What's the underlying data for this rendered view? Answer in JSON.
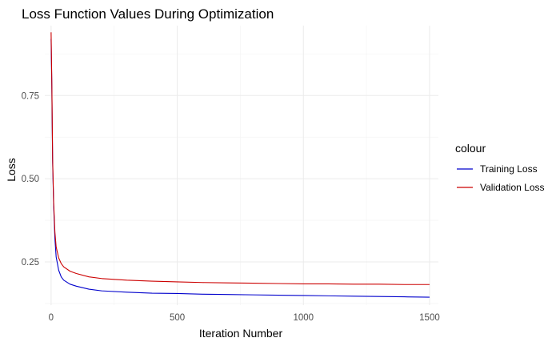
{
  "chart_data": {
    "type": "line",
    "title": "Loss Function Values During Optimization",
    "xlabel": "Iteration Number",
    "ylabel": "Loss",
    "xlim": [
      -25,
      1535
    ],
    "ylim": [
      0.12,
      0.96
    ],
    "xticks": [
      0,
      500,
      1000,
      1500
    ],
    "yticks": [
      0.25,
      0.5,
      0.75
    ],
    "ytick_labels": [
      "0.25",
      "0.50",
      "0.75"
    ],
    "grid": true,
    "legend": {
      "title": "colour",
      "position": "right"
    },
    "series": [
      {
        "name": "Training Loss",
        "color": "#0000cc",
        "x": [
          0,
          3,
          6,
          10,
          15,
          20,
          30,
          40,
          50,
          75,
          100,
          150,
          200,
          300,
          400,
          500,
          600,
          700,
          800,
          900,
          1000,
          1100,
          1200,
          1300,
          1400,
          1500
        ],
        "y": [
          0.92,
          0.77,
          0.55,
          0.42,
          0.32,
          0.265,
          0.225,
          0.205,
          0.195,
          0.183,
          0.177,
          0.168,
          0.163,
          0.159,
          0.156,
          0.155,
          0.153,
          0.152,
          0.151,
          0.15,
          0.149,
          0.148,
          0.147,
          0.146,
          0.145,
          0.144
        ]
      },
      {
        "name": "Validation Loss",
        "color": "#cc0000",
        "x": [
          0,
          3,
          6,
          10,
          15,
          20,
          30,
          40,
          50,
          75,
          100,
          150,
          200,
          300,
          400,
          500,
          600,
          700,
          800,
          900,
          1000,
          1100,
          1200,
          1300,
          1400,
          1500
        ],
        "y": [
          0.94,
          0.78,
          0.56,
          0.43,
          0.34,
          0.295,
          0.262,
          0.245,
          0.235,
          0.222,
          0.215,
          0.205,
          0.2,
          0.195,
          0.192,
          0.19,
          0.188,
          0.187,
          0.186,
          0.185,
          0.184,
          0.184,
          0.183,
          0.183,
          0.182,
          0.182
        ]
      }
    ]
  }
}
